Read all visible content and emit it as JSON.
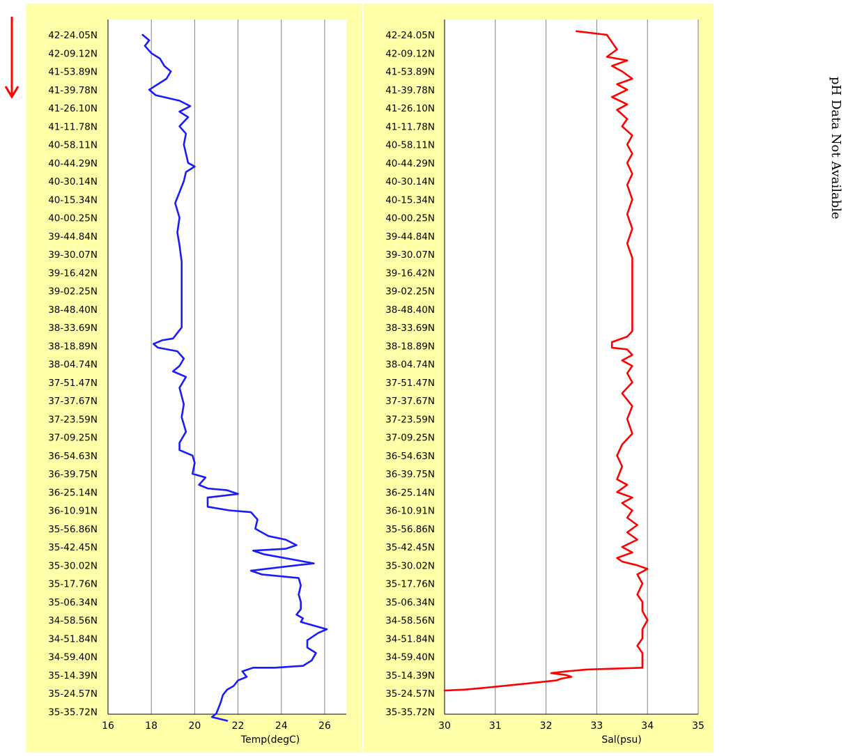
{
  "side_note": "pH Data Not Available",
  "direction_indicator": "down-arrow-icon",
  "colors": {
    "panel_bg": "#ffffa8",
    "temp_line": "#1a1aff",
    "sal_line": "#ff0000",
    "arrow": "#ff0000",
    "grid": "#808080"
  },
  "chart_data": [
    {
      "type": "line",
      "title": "",
      "xlabel": "Temp(degC)",
      "ylabel": "",
      "xlim": [
        16,
        27
      ],
      "xticks": [
        16,
        18,
        20,
        22,
        24,
        26
      ],
      "grid": "vertical",
      "orientation": "vertical-profile",
      "y_categories": [
        "42-24.05N",
        "42-09.12N",
        "41-53.89N",
        "41-39.78N",
        "41-26.10N",
        "41-11.78N",
        "40-58.11N",
        "40-44.29N",
        "40-30.14N",
        "40-15.34N",
        "40-00.25N",
        "39-44.84N",
        "39-30.07N",
        "39-16.42N",
        "39-02.25N",
        "38-48.40N",
        "38-33.69N",
        "38-18.89N",
        "38-04.74N",
        "37-51.47N",
        "37-37.67N",
        "37-23.59N",
        "37-09.25N",
        "36-54.63N",
        "36-39.75N",
        "36-25.14N",
        "36-10.91N",
        "35-56.86N",
        "35-42.45N",
        "35-30.02N",
        "35-17.76N",
        "35-06.34N",
        "34-58.56N",
        "34-51.84N",
        "34-59.40N",
        "35-14.39N",
        "35-24.57N",
        "35-35.72N"
      ],
      "series": [
        {
          "values_at": "y_categories_index",
          "points": [
            [
              17.6,
              0
            ],
            [
              17.9,
              0.3
            ],
            [
              17.7,
              0.6
            ],
            [
              18.0,
              1.0
            ],
            [
              18.4,
              1.3
            ],
            [
              18.6,
              1.7
            ],
            [
              18.9,
              2.0
            ],
            [
              18.7,
              2.4
            ],
            [
              17.9,
              3.0
            ],
            [
              18.2,
              3.3
            ],
            [
              19.3,
              3.6
            ],
            [
              19.8,
              3.9
            ],
            [
              19.3,
              4.2
            ],
            [
              19.7,
              4.5
            ],
            [
              19.3,
              5.0
            ],
            [
              19.6,
              5.4
            ],
            [
              19.5,
              6.0
            ],
            [
              19.6,
              6.5
            ],
            [
              19.7,
              7.0
            ],
            [
              20.0,
              7.2
            ],
            [
              19.6,
              7.5
            ],
            [
              19.5,
              8.0
            ],
            [
              19.3,
              8.6
            ],
            [
              19.1,
              9.2
            ],
            [
              19.3,
              10.0
            ],
            [
              19.2,
              10.8
            ],
            [
              19.3,
              11.5
            ],
            [
              19.4,
              12.4
            ],
            [
              19.4,
              13.3
            ],
            [
              19.4,
              14.2
            ],
            [
              19.4,
              15.2
            ],
            [
              19.4,
              16.0
            ],
            [
              19.0,
              16.6
            ],
            [
              18.5,
              16.7
            ],
            [
              18.1,
              16.9
            ],
            [
              18.3,
              17.1
            ],
            [
              19.2,
              17.3
            ],
            [
              19.5,
              17.7
            ],
            [
              19.3,
              18.1
            ],
            [
              19.0,
              18.4
            ],
            [
              19.6,
              18.7
            ],
            [
              19.3,
              19.3
            ],
            [
              19.5,
              20.2
            ],
            [
              19.4,
              20.9
            ],
            [
              19.6,
              21.7
            ],
            [
              19.3,
              22.3
            ],
            [
              19.3,
              22.7
            ],
            [
              19.9,
              23.0
            ],
            [
              20.0,
              23.4
            ],
            [
              19.9,
              24.0
            ],
            [
              20.5,
              24.2
            ],
            [
              20.2,
              24.6
            ],
            [
              20.6,
              24.8
            ],
            [
              21.5,
              24.9
            ],
            [
              22.0,
              25.1
            ],
            [
              20.6,
              25.3
            ],
            [
              20.6,
              25.8
            ],
            [
              21.6,
              26.0
            ],
            [
              22.6,
              26.1
            ],
            [
              22.9,
              26.5
            ],
            [
              22.8,
              27.0
            ],
            [
              23.4,
              27.4
            ],
            [
              24.2,
              27.6
            ],
            [
              24.7,
              27.9
            ],
            [
              24.2,
              28.1
            ],
            [
              22.7,
              28.2
            ],
            [
              23.2,
              28.4
            ],
            [
              24.6,
              28.7
            ],
            [
              25.5,
              28.9
            ],
            [
              24.7,
              29.0
            ],
            [
              22.6,
              29.3
            ],
            [
              23.1,
              29.5
            ],
            [
              24.8,
              29.7
            ],
            [
              24.9,
              30.1
            ],
            [
              24.8,
              30.6
            ],
            [
              24.9,
              31.0
            ],
            [
              24.9,
              31.4
            ],
            [
              24.7,
              31.7
            ],
            [
              25.0,
              31.9
            ],
            [
              24.9,
              32.1
            ],
            [
              25.5,
              32.3
            ],
            [
              26.1,
              32.5
            ],
            [
              25.7,
              32.7
            ],
            [
              25.2,
              33.1
            ],
            [
              25.2,
              33.5
            ],
            [
              25.6,
              33.8
            ],
            [
              25.4,
              34.2
            ],
            [
              25.0,
              34.5
            ],
            [
              23.7,
              34.6
            ],
            [
              22.7,
              34.6
            ],
            [
              22.2,
              34.8
            ],
            [
              22.4,
              35.1
            ],
            [
              22.0,
              35.3
            ],
            [
              21.8,
              35.6
            ],
            [
              21.5,
              35.8
            ],
            [
              21.3,
              36.1
            ],
            [
              21.2,
              36.5
            ],
            [
              21.1,
              36.8
            ],
            [
              21.0,
              37.1
            ],
            [
              20.8,
              37.3
            ],
            [
              21.5,
              37.5
            ]
          ]
        }
      ]
    },
    {
      "type": "line",
      "title": "",
      "xlabel": "Sal(psu)",
      "ylabel": "",
      "xlim": [
        30,
        35
      ],
      "xticks": [
        30,
        31,
        32,
        33,
        34,
        35
      ],
      "grid": "vertical",
      "orientation": "vertical-profile",
      "y_categories": [
        "42-24.05N",
        "42-09.12N",
        "41-53.89N",
        "41-39.78N",
        "41-26.10N",
        "41-11.78N",
        "40-58.11N",
        "40-44.29N",
        "40-30.14N",
        "40-15.34N",
        "40-00.25N",
        "39-44.84N",
        "39-30.07N",
        "39-16.42N",
        "39-02.25N",
        "38-48.40N",
        "38-33.69N",
        "38-18.89N",
        "38-04.74N",
        "37-51.47N",
        "37-37.67N",
        "37-23.59N",
        "37-09.25N",
        "36-54.63N",
        "36-39.75N",
        "36-25.14N",
        "36-10.91N",
        "35-56.86N",
        "35-42.45N",
        "35-30.02N",
        "35-17.76N",
        "35-06.34N",
        "34-58.56N",
        "34-51.84N",
        "34-59.40N",
        "35-14.39N",
        "35-24.57N",
        "35-35.72N"
      ],
      "series": [
        {
          "values_at": "y_categories_index",
          "points": [
            [
              32.6,
              -0.2
            ],
            [
              33.2,
              0.0
            ],
            [
              33.3,
              0.4
            ],
            [
              33.4,
              0.8
            ],
            [
              33.2,
              1.2
            ],
            [
              33.6,
              1.4
            ],
            [
              33.3,
              1.7
            ],
            [
              33.5,
              2.0
            ],
            [
              33.7,
              2.4
            ],
            [
              33.4,
              2.7
            ],
            [
              33.6,
              3.0
            ],
            [
              33.3,
              3.4
            ],
            [
              33.6,
              3.8
            ],
            [
              33.4,
              4.1
            ],
            [
              33.6,
              4.6
            ],
            [
              33.5,
              5.0
            ],
            [
              33.7,
              5.5
            ],
            [
              33.6,
              6.0
            ],
            [
              33.7,
              6.5
            ],
            [
              33.6,
              7.0
            ],
            [
              33.7,
              7.6
            ],
            [
              33.6,
              8.2
            ],
            [
              33.7,
              9.0
            ],
            [
              33.6,
              9.8
            ],
            [
              33.7,
              10.6
            ],
            [
              33.6,
              11.4
            ],
            [
              33.7,
              12.2
            ],
            [
              33.7,
              13.0
            ],
            [
              33.7,
              13.8
            ],
            [
              33.7,
              14.6
            ],
            [
              33.7,
              15.4
            ],
            [
              33.7,
              16.2
            ],
            [
              33.6,
              16.5
            ],
            [
              33.4,
              16.7
            ],
            [
              33.3,
              16.8
            ],
            [
              33.3,
              17.1
            ],
            [
              33.6,
              17.2
            ],
            [
              33.7,
              17.5
            ],
            [
              33.5,
              17.8
            ],
            [
              33.7,
              18.1
            ],
            [
              33.6,
              18.5
            ],
            [
              33.7,
              19.0
            ],
            [
              33.5,
              19.6
            ],
            [
              33.7,
              20.3
            ],
            [
              33.6,
              21.0
            ],
            [
              33.7,
              21.8
            ],
            [
              33.5,
              22.4
            ],
            [
              33.4,
              23.0
            ],
            [
              33.5,
              23.6
            ],
            [
              33.4,
              24.3
            ],
            [
              33.6,
              24.6
            ],
            [
              33.4,
              25.0
            ],
            [
              33.7,
              25.3
            ],
            [
              33.5,
              25.6
            ],
            [
              33.7,
              26.0
            ],
            [
              33.6,
              26.4
            ],
            [
              33.8,
              26.8
            ],
            [
              33.6,
              27.2
            ],
            [
              33.8,
              27.6
            ],
            [
              33.5,
              28.0
            ],
            [
              33.7,
              28.3
            ],
            [
              33.4,
              28.6
            ],
            [
              33.5,
              28.8
            ],
            [
              33.8,
              29.0
            ],
            [
              34.0,
              29.2
            ],
            [
              33.8,
              29.5
            ],
            [
              33.9,
              30.0
            ],
            [
              33.8,
              30.6
            ],
            [
              33.9,
              31.0
            ],
            [
              33.9,
              31.5
            ],
            [
              34.0,
              32.0
            ],
            [
              33.9,
              32.5
            ],
            [
              33.9,
              33.0
            ],
            [
              33.8,
              33.4
            ],
            [
              33.9,
              33.8
            ],
            [
              33.9,
              34.3
            ],
            [
              33.9,
              34.6
            ],
            [
              32.8,
              34.7
            ],
            [
              32.4,
              34.8
            ],
            [
              32.1,
              34.9
            ],
            [
              32.4,
              35.0
            ],
            [
              32.5,
              35.1
            ],
            [
              32.3,
              35.2
            ],
            [
              32.2,
              35.3
            ],
            [
              31.5,
              35.5
            ],
            [
              30.8,
              35.7
            ],
            [
              30.4,
              35.8
            ],
            [
              30.0,
              35.85
            ]
          ]
        }
      ]
    }
  ]
}
